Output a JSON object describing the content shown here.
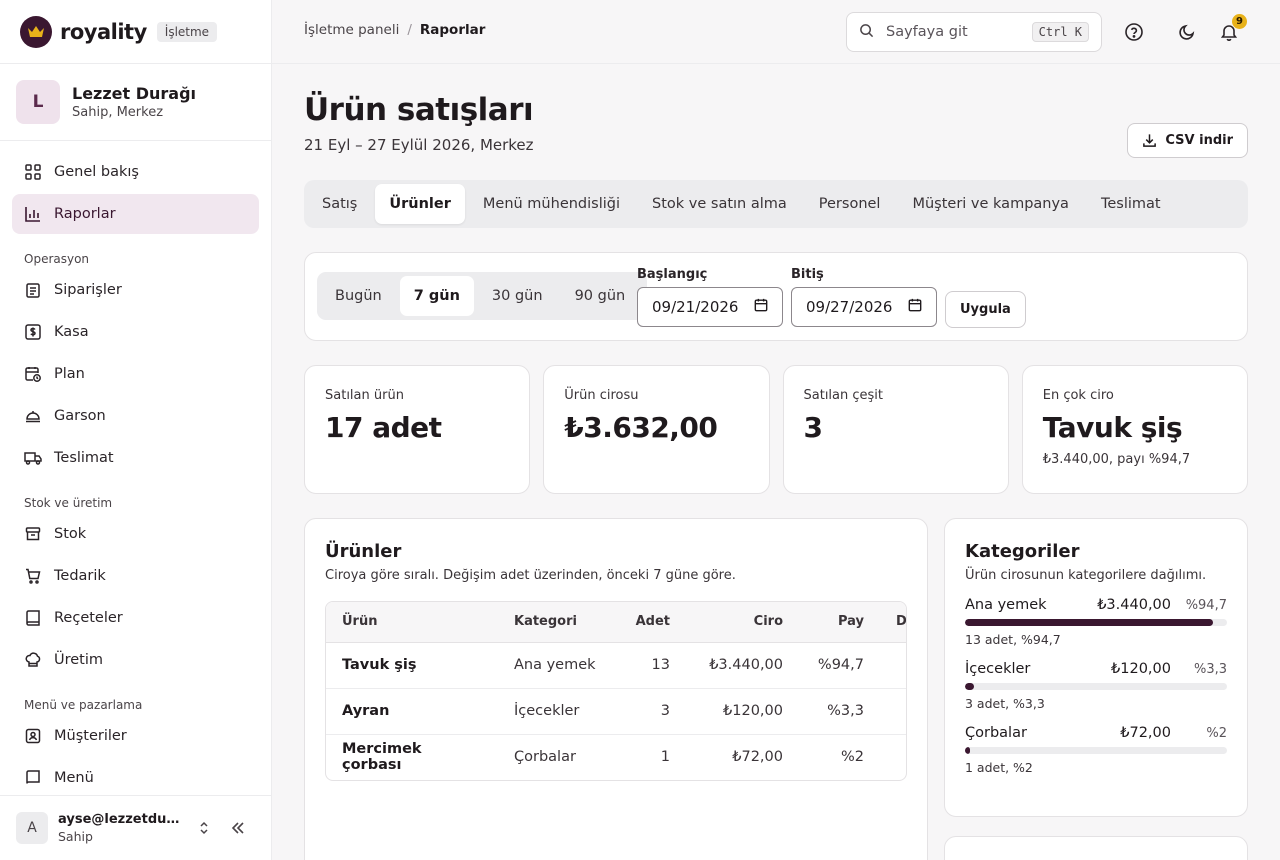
{
  "brand": {
    "name": "royality",
    "badge": "İşletme",
    "colors": {
      "accent": "#3a1730",
      "crown": "#e8b21a"
    }
  },
  "business": {
    "initial": "L",
    "name": "Lezzet Durağı",
    "role": "Sahip, Merkez"
  },
  "nav": {
    "top": [
      {
        "label": "Genel bakış",
        "icon": "dashboard-icon"
      },
      {
        "label": "Raporlar",
        "icon": "chart-icon",
        "active": true
      }
    ],
    "sections": [
      {
        "title": "Operasyon",
        "items": [
          "Siparişler",
          "Kasa",
          "Plan",
          "Garson",
          "Teslimat"
        ]
      },
      {
        "title": "Stok ve üretim",
        "items": [
          "Stok",
          "Tedarik",
          "Reçeteler",
          "Üretim"
        ]
      },
      {
        "title": "Menü ve pazarlama",
        "items": [
          "Müşteriler",
          "Menü"
        ]
      }
    ]
  },
  "user": {
    "initial": "A",
    "email": "ayse@lezzetduragi.com",
    "role": "Sahip"
  },
  "topbar": {
    "breadcrumb": [
      "İşletme paneli",
      "Raporlar"
    ],
    "search_placeholder": "Sayfaya git",
    "shortcut": "Ctrl K",
    "notifications": "9"
  },
  "page": {
    "title": "Ürün satışları",
    "subtitle": "21 Eyl – 27 Eylül 2026, Merkez",
    "csv_label": "CSV indir"
  },
  "tabs": [
    "Satış",
    "Ürünler",
    "Menü mühendisliği",
    "Stok ve satın alma",
    "Personel",
    "Müşteri ve kampanya",
    "Teslimat"
  ],
  "active_tab": 1,
  "filter": {
    "ranges": [
      "Bugün",
      "7 gün",
      "30 gün",
      "90 gün"
    ],
    "active_range": 1,
    "start_label": "Başlangıç",
    "start_value": "09/21/2026",
    "end_label": "Bitiş",
    "end_value": "09/27/2026",
    "apply_label": "Uygula"
  },
  "kpis": [
    {
      "label": "Satılan ürün",
      "value": "17 adet",
      "note": ""
    },
    {
      "label": "Ürün cirosu",
      "value": "₺3.632,00",
      "note": ""
    },
    {
      "label": "Satılan çeşit",
      "value": "3",
      "note": ""
    },
    {
      "label": "En çok ciro",
      "value": "Tavuk şiş",
      "note": "₺3.440,00, payı %94,7"
    }
  ],
  "products": {
    "title": "Ürünler",
    "subtitle": "Ciroya göre sıralı. Değişim adet üzerinden, önceki 7 güne göre.",
    "columns": [
      "Ürün",
      "Kategori",
      "Adet",
      "Ciro",
      "Pay",
      "D"
    ],
    "rows": [
      {
        "name": "Tavuk şiş",
        "category": "Ana yemek",
        "qty": "13",
        "revenue": "₺3.440,00",
        "share": "%94,7"
      },
      {
        "name": "Ayran",
        "category": "İçecekler",
        "qty": "3",
        "revenue": "₺120,00",
        "share": "%3,3"
      },
      {
        "name": "Mercimek çorbası",
        "category": "Çorbalar",
        "qty": "1",
        "revenue": "₺72,00",
        "share": "%2"
      }
    ]
  },
  "categories": {
    "title": "Kategoriler",
    "subtitle": "Ürün cirosunun kategorilere dağılımı.",
    "items": [
      {
        "name": "Ana yemek",
        "revenue": "₺3.440,00",
        "pct": "%94,7",
        "fraction": 0.947,
        "note": "13 adet, %94,7"
      },
      {
        "name": "İçecekler",
        "revenue": "₺120,00",
        "pct": "%3,3",
        "fraction": 0.033,
        "note": "3 adet, %3,3"
      },
      {
        "name": "Çorbalar",
        "revenue": "₺72,00",
        "pct": "%2",
        "fraction": 0.02,
        "note": "1 adet, %2"
      }
    ]
  }
}
